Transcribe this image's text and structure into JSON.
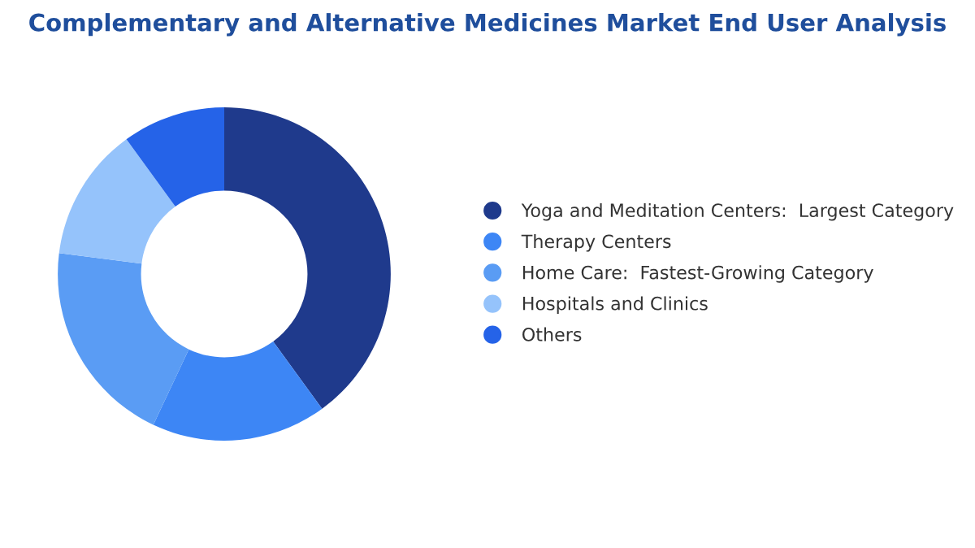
{
  "chart_data": {
    "type": "donut",
    "title": "Complementary and Alternative Medicines Market End User Analysis",
    "categories": [
      "Yoga and Meditation Centers:  Largest Category",
      "Therapy Centers",
      "Home Care:  Fastest-Growing Category",
      "Hospitals and Clinics",
      "Others"
    ],
    "values": [
      40,
      17,
      20,
      13,
      10
    ],
    "colors": [
      "#1f3a8c",
      "#3d86f5",
      "#5a9cf4",
      "#95c3fb",
      "#2563e8"
    ],
    "legend": "right"
  }
}
